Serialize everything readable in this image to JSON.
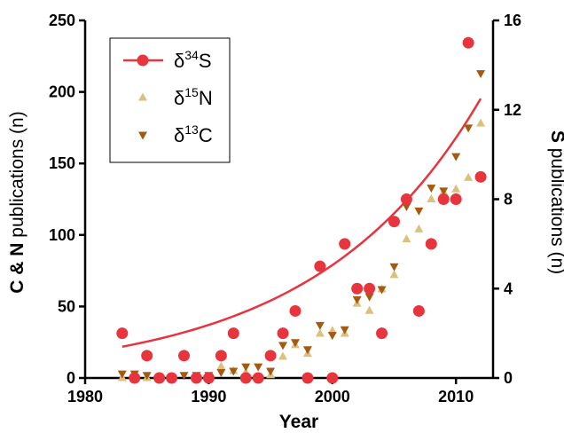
{
  "chart_data": {
    "type": "scatter",
    "xlabel": "Year",
    "ylabel_left": {
      "bold": "C & N",
      "rest": " publications (n)"
    },
    "ylabel_right": {
      "bold": "S",
      "rest": " publications (n)"
    },
    "xlim": [
      1980,
      2013
    ],
    "ylim_left": [
      0,
      250
    ],
    "ylim_right": [
      0,
      16
    ],
    "x_ticks": [
      1980,
      1990,
      2000,
      2010
    ],
    "y_left_ticks": [
      0,
      50,
      100,
      150,
      200,
      250
    ],
    "y_right_ticks": [
      0,
      4,
      8,
      12,
      16
    ],
    "grid": false,
    "legend_position": "top-left",
    "series": [
      {
        "name": "δ34S",
        "base": "δ",
        "sup": "34",
        "elem": "S",
        "marker": "circle",
        "color": "#e8343c",
        "axis": "right",
        "points": [
          [
            1983,
            2
          ],
          [
            1984,
            0
          ],
          [
            1985,
            1
          ],
          [
            1986,
            0
          ],
          [
            1987,
            0
          ],
          [
            1988,
            1
          ],
          [
            1989,
            0
          ],
          [
            1990,
            0
          ],
          [
            1991,
            1
          ],
          [
            1992,
            2
          ],
          [
            1993,
            0
          ],
          [
            1994,
            0
          ],
          [
            1995,
            1
          ],
          [
            1996,
            2
          ],
          [
            1997,
            3
          ],
          [
            1998,
            0
          ],
          [
            1999,
            5
          ],
          [
            2000,
            0
          ],
          [
            2001,
            6
          ],
          [
            2002,
            4
          ],
          [
            2003,
            4
          ],
          [
            2004,
            2
          ],
          [
            2005,
            7
          ],
          [
            2006,
            8
          ],
          [
            2007,
            3
          ],
          [
            2008,
            6
          ],
          [
            2009,
            8
          ],
          [
            2010,
            8
          ],
          [
            2011,
            15
          ],
          [
            2012,
            9
          ]
        ]
      },
      {
        "name": "δ15N",
        "base": "δ",
        "sup": "15",
        "elem": "N",
        "marker": "triangle-up",
        "color": "#dcc07e",
        "axis": "left",
        "points": [
          [
            1983,
            0
          ],
          [
            1985,
            0
          ],
          [
            1987,
            0
          ],
          [
            1989,
            0
          ],
          [
            1991,
            8
          ],
          [
            1992,
            5
          ],
          [
            1993,
            4
          ],
          [
            1994,
            0
          ],
          [
            1995,
            2
          ],
          [
            1996,
            15
          ],
          [
            1997,
            23
          ],
          [
            1998,
            17
          ],
          [
            1999,
            31
          ],
          [
            2000,
            33
          ],
          [
            2001,
            31
          ],
          [
            2002,
            52
          ],
          [
            2003,
            47
          ],
          [
            2004,
            62
          ],
          [
            2005,
            72
          ],
          [
            2006,
            97
          ],
          [
            2007,
            104
          ],
          [
            2008,
            125
          ],
          [
            2009,
            130
          ],
          [
            2010,
            132
          ],
          [
            2011,
            140
          ],
          [
            2012,
            178
          ]
        ]
      },
      {
        "name": "δ13C",
        "base": "δ",
        "sup": "13",
        "elem": "C",
        "marker": "triangle-down",
        "color": "#a45a10",
        "axis": "left",
        "points": [
          [
            1983,
            3
          ],
          [
            1984,
            3
          ],
          [
            1985,
            2
          ],
          [
            1986,
            0
          ],
          [
            1987,
            0
          ],
          [
            1988,
            2
          ],
          [
            1989,
            2
          ],
          [
            1990,
            2
          ],
          [
            1991,
            4
          ],
          [
            1992,
            5
          ],
          [
            1993,
            8
          ],
          [
            1994,
            8
          ],
          [
            1995,
            5
          ],
          [
            1996,
            23
          ],
          [
            1997,
            25
          ],
          [
            1998,
            20
          ],
          [
            1999,
            37
          ],
          [
            2000,
            30
          ],
          [
            2001,
            34
          ],
          [
            2002,
            55
          ],
          [
            2003,
            57
          ],
          [
            2004,
            62
          ],
          [
            2005,
            78
          ],
          [
            2006,
            120
          ],
          [
            2007,
            117
          ],
          [
            2008,
            133
          ],
          [
            2009,
            131
          ],
          [
            2010,
            155
          ],
          [
            2011,
            175
          ],
          [
            2012,
            213
          ]
        ]
      }
    ],
    "trend": {
      "series": "δ34S",
      "type": "exponential",
      "color": "#e8343c",
      "x_range": [
        1983,
        2012
      ],
      "y_start": 1.4,
      "y_end": 12.5
    }
  }
}
